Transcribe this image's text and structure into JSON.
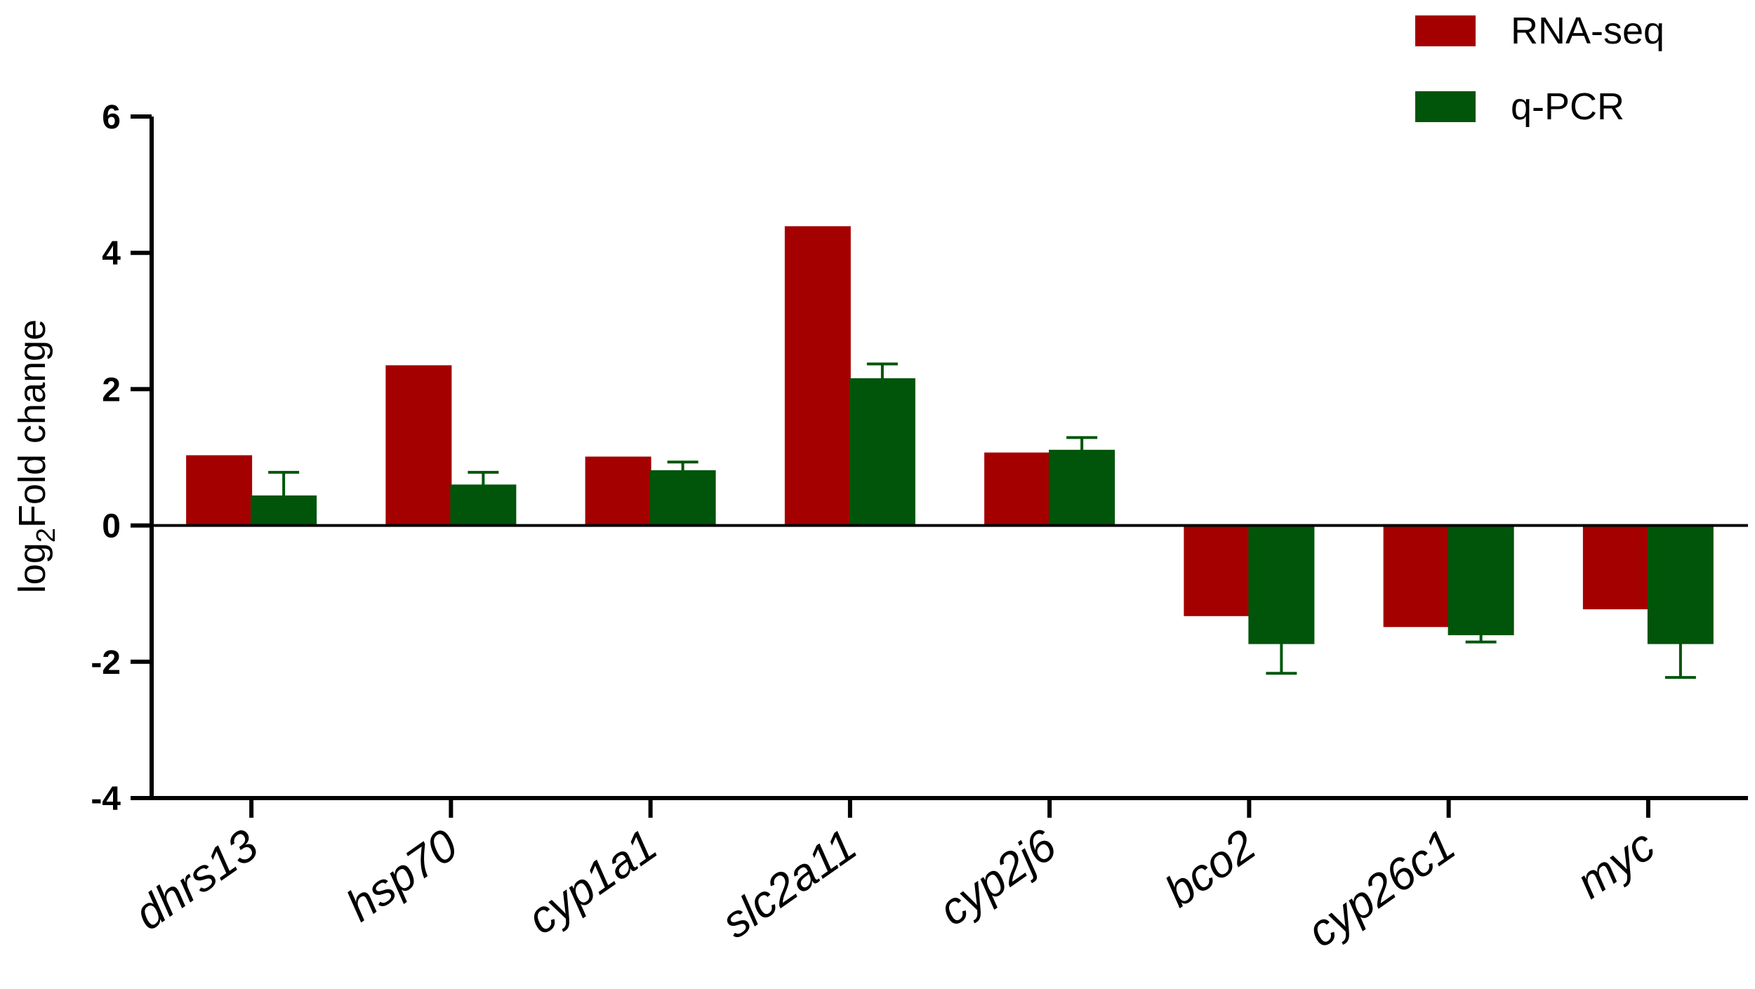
{
  "chart_data": {
    "type": "bar",
    "title": "",
    "xlabel": "",
    "ylabel_main": "log",
    "ylabel_sub": "2",
    "ylabel_rest": "Fold change",
    "ylim": [
      -4,
      6
    ],
    "yticks": [
      "6",
      "4",
      "2",
      "0",
      "-2",
      "-4"
    ],
    "grid": false,
    "legend_position": "top-right",
    "categories": [
      "dhrs13",
      "hsp70",
      "cyp1a1",
      "slc2a11",
      "cyp2j6",
      "bco2",
      "cyp26c1",
      "myc"
    ],
    "series": [
      {
        "name": "RNA-seq",
        "color": "#A40000",
        "values": [
          1.02,
          2.34,
          1.0,
          4.38,
          1.06,
          -1.32,
          -1.48,
          -1.22
        ]
      },
      {
        "name": "q-PCR",
        "color": "#00550A",
        "values": [
          0.43,
          0.59,
          0.8,
          2.15,
          1.1,
          -1.73,
          -1.6,
          -1.73
        ],
        "error": [
          0.35,
          0.19,
          0.13,
          0.22,
          0.19,
          0.44,
          0.11,
          0.5
        ]
      }
    ]
  }
}
